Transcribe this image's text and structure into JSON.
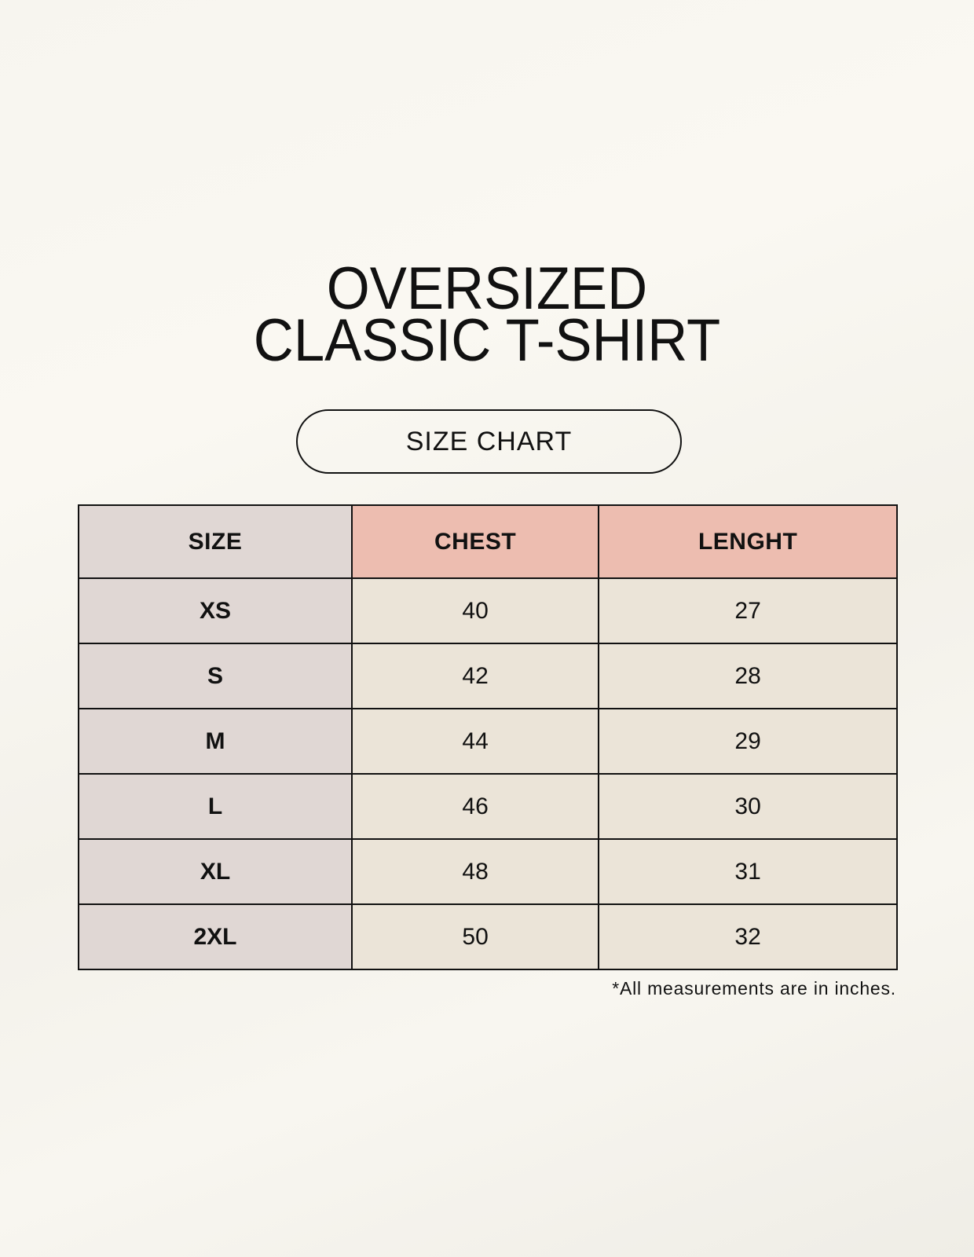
{
  "title": {
    "line1": "OVERSIZED",
    "line2": "CLASSIC T-SHIRT"
  },
  "badge": "SIZE CHART",
  "table": {
    "headers": [
      "SIZE",
      "CHEST",
      "LENGHT"
    ],
    "rows": [
      [
        "XS",
        "40",
        "27"
      ],
      [
        "S",
        "42",
        "28"
      ],
      [
        "M",
        "44",
        "29"
      ],
      [
        "L",
        "46",
        "30"
      ],
      [
        "XL",
        "48",
        "31"
      ],
      [
        "2XL",
        "50",
        "32"
      ]
    ]
  },
  "footnote": "*All measurements are in inches.",
  "colors": {
    "size_column": "#e0d7d4",
    "header_accent": "#edbdb0",
    "value_cells": "#ebe4d8"
  }
}
